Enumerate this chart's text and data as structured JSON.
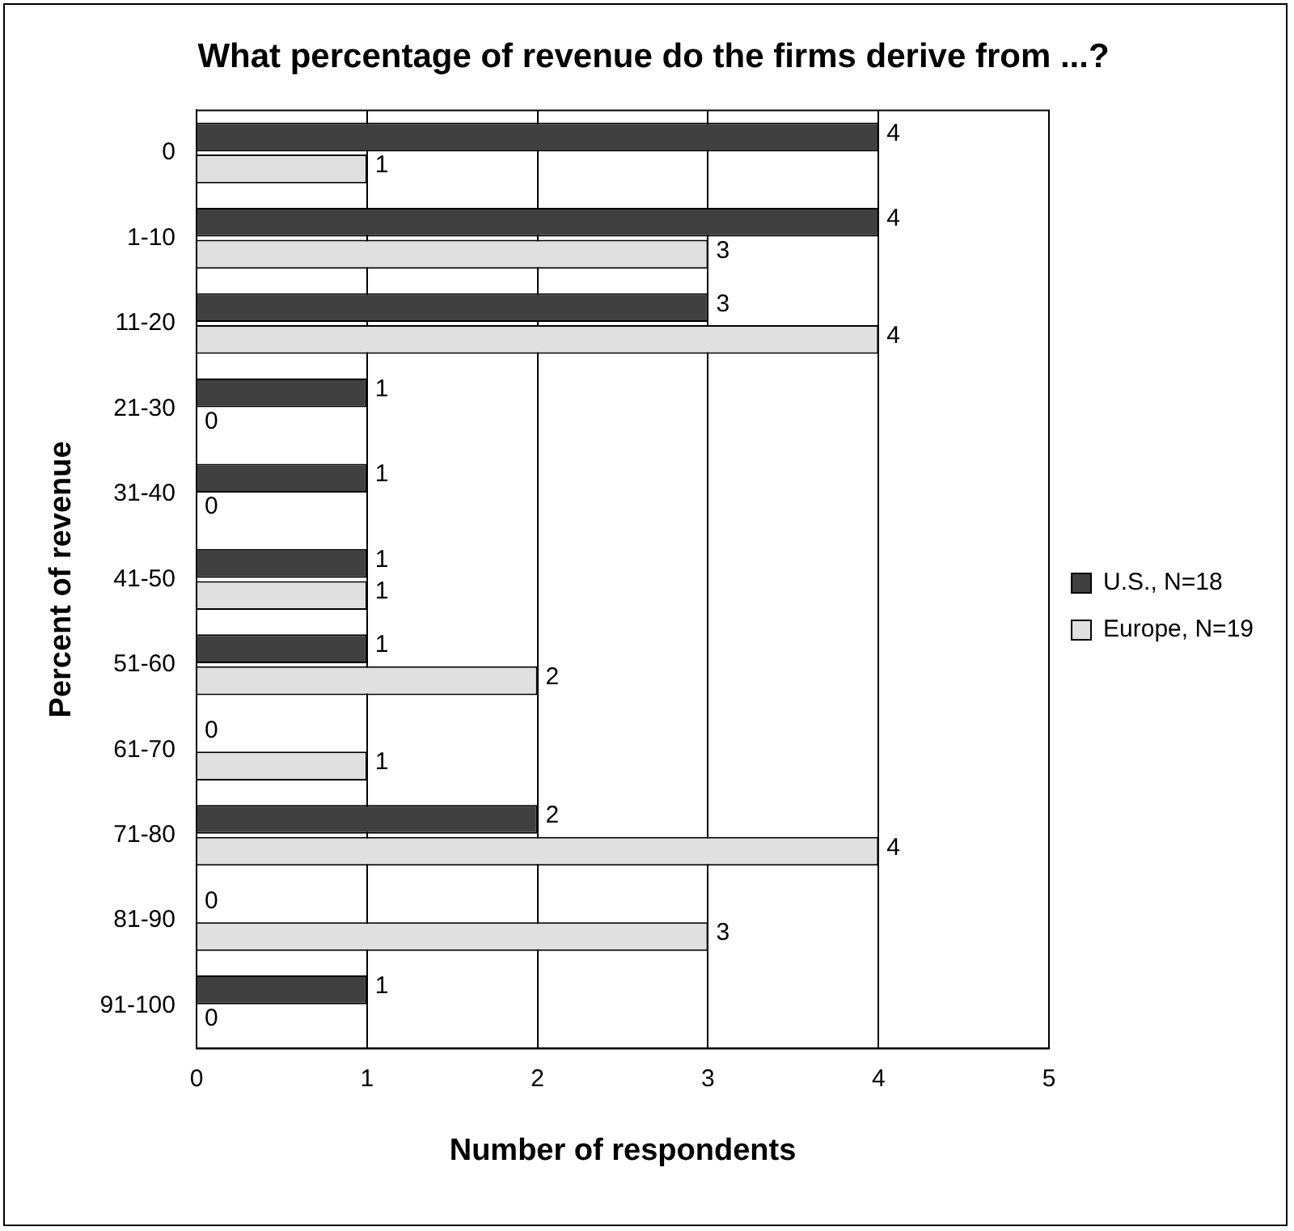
{
  "chart_data": {
    "type": "bar",
    "orientation": "horizontal",
    "title": "What percentage of revenue do the firms derive from ...?",
    "xlabel": "Number of respondents",
    "ylabel": "Percent of revenue",
    "categories": [
      "0",
      "1-10",
      "11-20",
      "21-30",
      "31-40",
      "41-50",
      "51-60",
      "61-70",
      "71-80",
      "81-90",
      "91-100"
    ],
    "series": [
      {
        "name": "U.S., N=18",
        "color": "#404040",
        "values": [
          4,
          4,
          3,
          1,
          1,
          1,
          1,
          0,
          2,
          0,
          1
        ]
      },
      {
        "name": "Europe, N=19",
        "color": "#e0e0e0",
        "values": [
          1,
          3,
          4,
          0,
          0,
          1,
          2,
          1,
          4,
          3,
          0
        ]
      }
    ],
    "xlim": [
      0,
      5
    ],
    "xticks": [
      0,
      1,
      2,
      3,
      4,
      5
    ],
    "grid": "x",
    "legend": "right",
    "data_labels": true
  }
}
